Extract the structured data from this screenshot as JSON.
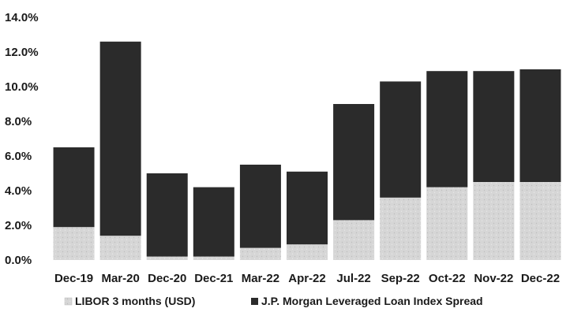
{
  "chart_data": {
    "type": "bar",
    "stacked": true,
    "categories": [
      "Dec-19",
      "Mar-20",
      "Dec-20",
      "Dec-21",
      "Mar-22",
      "Apr-22",
      "Jul-22",
      "Sep-22",
      "Oct-22",
      "Nov-22",
      "Dec-22"
    ],
    "series": [
      {
        "name": "LIBOR 3 months (USD)",
        "color": "#d4d4d4",
        "values": [
          1.9,
          1.4,
          0.2,
          0.2,
          0.7,
          0.9,
          2.3,
          3.6,
          4.2,
          4.5,
          4.5
        ]
      },
      {
        "name": "J.P. Morgan Leveraged Loan Index Spread",
        "color": "#2b2b2b",
        "values": [
          4.6,
          11.2,
          4.8,
          4.0,
          4.8,
          4.2,
          6.7,
          6.7,
          6.7,
          6.4,
          6.5
        ]
      }
    ],
    "ylim": [
      0,
      14
    ],
    "yticks": [
      "0.0%",
      "2.0%",
      "4.0%",
      "6.0%",
      "8.0%",
      "10.0%",
      "12.0%",
      "14.0%"
    ],
    "ytick_values": [
      0,
      2,
      4,
      6,
      8,
      10,
      12,
      14
    ],
    "grid": false,
    "legend_position": "bottom-left"
  }
}
